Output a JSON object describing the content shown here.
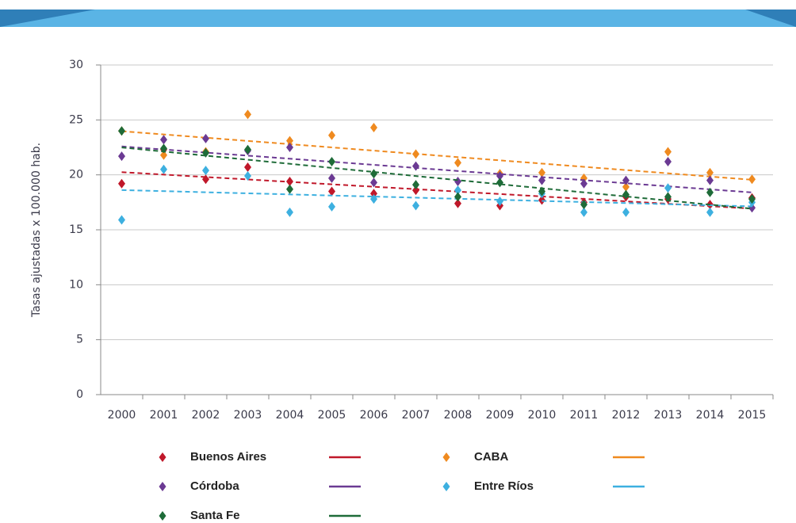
{
  "chart_data": {
    "type": "scatter",
    "y_label": "Tasas ajustadas x 100.000 hab.",
    "categories": [
      "2000",
      "2001",
      "2002",
      "2003",
      "2004",
      "2005",
      "2006",
      "2007",
      "2008",
      "2009",
      "2010",
      "2011",
      "2012",
      "2013",
      "2014",
      "2015"
    ],
    "ylim": [
      0,
      30
    ],
    "yticks": [
      0,
      5,
      10,
      15,
      20,
      25,
      30
    ],
    "grid": true,
    "trendline": true,
    "legend": "bottom",
    "series": [
      {
        "name": "Buenos Aires",
        "color": "#c0182a",
        "values": [
          19.2,
          22.3,
          19.6,
          20.7,
          19.4,
          18.5,
          18.3,
          18.6,
          17.4,
          17.2,
          17.7,
          17.5,
          18.0,
          17.8,
          17.3,
          17.9
        ]
      },
      {
        "name": "CABA",
        "color": "#ef8a1f",
        "values": [
          24.0,
          21.8,
          22.1,
          25.5,
          23.1,
          23.6,
          24.3,
          21.9,
          21.1,
          20.1,
          20.2,
          19.7,
          18.9,
          22.1,
          20.2,
          19.6
        ]
      },
      {
        "name": "Córdoba",
        "color": "#6b3a93",
        "values": [
          21.7,
          23.2,
          23.3,
          22.2,
          22.5,
          19.7,
          19.3,
          20.8,
          19.4,
          19.9,
          19.5,
          19.2,
          19.5,
          21.2,
          19.5,
          17.0
        ]
      },
      {
        "name": "Entre Ríos",
        "color": "#3db0e0",
        "values": [
          15.9,
          20.5,
          20.4,
          19.9,
          16.6,
          17.1,
          17.8,
          17.2,
          18.6,
          17.6,
          18.3,
          16.6,
          16.6,
          18.8,
          16.6,
          17.5
        ]
      },
      {
        "name": "Santa Fe",
        "color": "#1e6b38",
        "values": [
          24.0,
          22.4,
          22.0,
          22.3,
          18.7,
          21.2,
          20.1,
          19.1,
          18.0,
          19.3,
          18.5,
          17.3,
          18.2,
          18.0,
          18.4,
          17.8
        ]
      }
    ]
  }
}
